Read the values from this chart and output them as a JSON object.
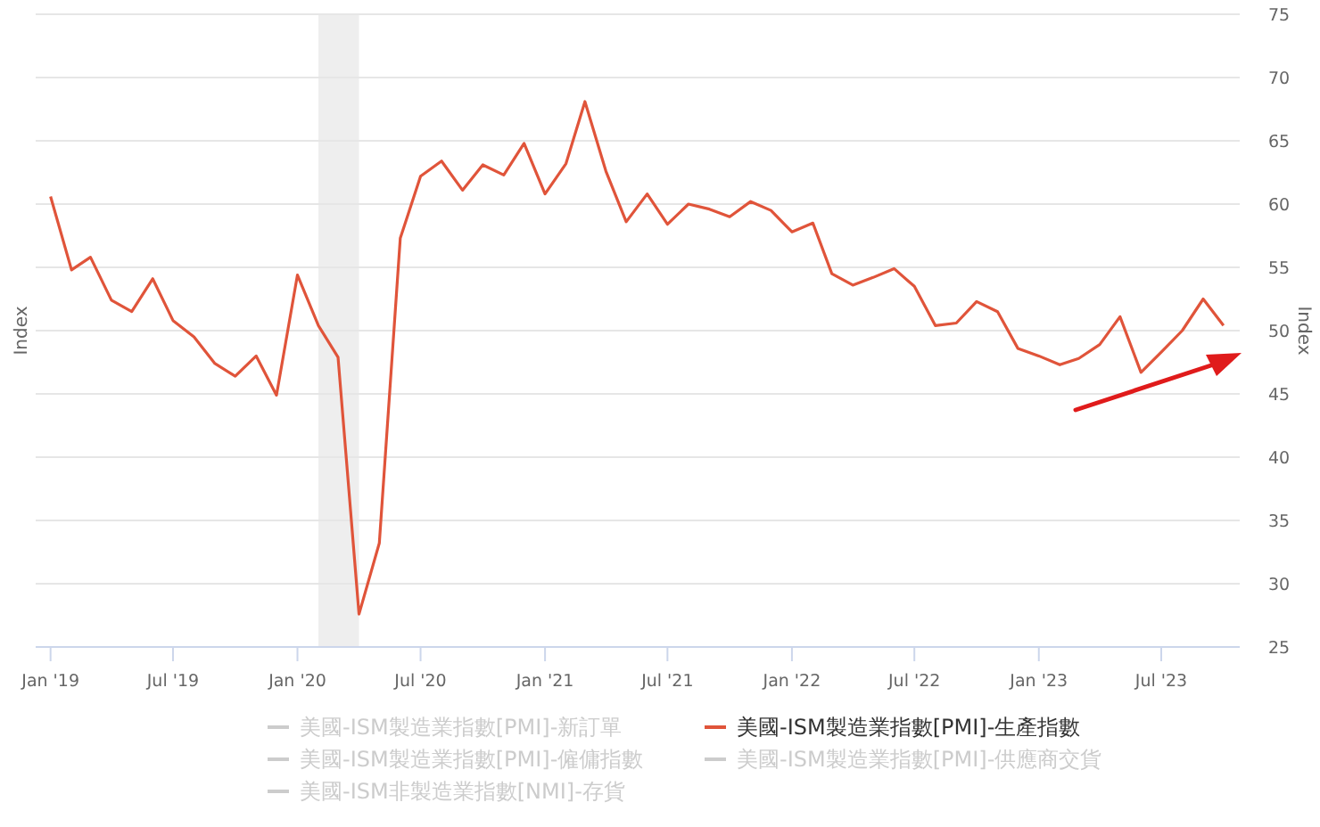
{
  "chart_data": {
    "type": "line",
    "ylabel": "Index",
    "y2label": "Index",
    "x": [
      "2019-01",
      "2019-02",
      "2019-03",
      "2019-04",
      "2019-05",
      "2019-06",
      "2019-07",
      "2019-08",
      "2019-09",
      "2019-10",
      "2019-11",
      "2019-12",
      "2020-01",
      "2020-02",
      "2020-03",
      "2020-04",
      "2020-05",
      "2020-06",
      "2020-07",
      "2020-08",
      "2020-09",
      "2020-10",
      "2020-11",
      "2020-12",
      "2021-01",
      "2021-02",
      "2021-03",
      "2021-04",
      "2021-05",
      "2021-06",
      "2021-07",
      "2021-08",
      "2021-09",
      "2021-10",
      "2021-11",
      "2021-12",
      "2022-01",
      "2022-02",
      "2022-03",
      "2022-04",
      "2022-05",
      "2022-06",
      "2022-07",
      "2022-08",
      "2022-09",
      "2022-10",
      "2022-11",
      "2022-12",
      "2023-01",
      "2023-02",
      "2023-03",
      "2023-04",
      "2023-05",
      "2023-06",
      "2023-07",
      "2023-08",
      "2023-09",
      "2023-10"
    ],
    "series": [
      {
        "name": "美國-ISM製造業指數[PMI]-新訂單",
        "color": "#cccccc",
        "values": [
          null,
          null,
          null,
          null,
          null,
          null,
          null,
          null,
          null,
          null,
          null,
          null,
          null,
          null,
          null,
          null,
          null,
          null,
          null,
          null,
          null,
          null,
          null,
          null,
          null,
          null,
          null,
          null,
          null,
          null,
          null,
          null,
          null,
          null,
          null,
          null,
          null,
          null,
          null,
          null,
          null,
          null,
          null,
          null,
          null,
          null,
          null,
          null,
          null,
          null,
          null,
          null,
          null,
          null,
          null,
          null,
          null,
          null
        ]
      },
      {
        "name": "美國-ISM製造業指數[PMI]-生產指數",
        "color": "#e0543a",
        "values": [
          60.6,
          54.8,
          55.8,
          52.4,
          51.5,
          54.1,
          50.8,
          49.5,
          47.4,
          46.4,
          48.0,
          44.9,
          54.4,
          50.4,
          47.9,
          27.6,
          33.2,
          57.3,
          62.2,
          63.4,
          61.1,
          63.1,
          62.3,
          64.8,
          60.8,
          63.2,
          68.1,
          62.6,
          58.6,
          60.8,
          58.4,
          60.0,
          59.6,
          59.0,
          60.2,
          59.5,
          57.8,
          58.5,
          54.5,
          53.6,
          54.2,
          54.9,
          53.5,
          50.4,
          50.6,
          52.3,
          51.5,
          48.6,
          48.0,
          47.3,
          47.8,
          48.9,
          51.1,
          46.7,
          48.3,
          50.0,
          52.5,
          50.4
        ]
      },
      {
        "name": "美國-ISM製造業指數[PMI]-僱傭指數",
        "color": "#cccccc",
        "values": [
          null,
          null,
          null,
          null,
          null,
          null,
          null,
          null,
          null,
          null,
          null,
          null,
          null,
          null,
          null,
          null,
          null,
          null,
          null,
          null,
          null,
          null,
          null,
          null,
          null,
          null,
          null,
          null,
          null,
          null,
          null,
          null,
          null,
          null,
          null,
          null,
          null,
          null,
          null,
          null,
          null,
          null,
          null,
          null,
          null,
          null,
          null,
          null,
          null,
          null,
          null,
          null,
          null,
          null,
          null,
          null,
          null,
          null
        ]
      },
      {
        "name": "美國-ISM製造業指數[PMI]-供應商交貨",
        "color": "#cccccc",
        "values": [
          null,
          null,
          null,
          null,
          null,
          null,
          null,
          null,
          null,
          null,
          null,
          null,
          null,
          null,
          null,
          null,
          null,
          null,
          null,
          null,
          null,
          null,
          null,
          null,
          null,
          null,
          null,
          null,
          null,
          null,
          null,
          null,
          null,
          null,
          null,
          null,
          null,
          null,
          null,
          null,
          null,
          null,
          null,
          null,
          null,
          null,
          null,
          null,
          null,
          null,
          null,
          null,
          null,
          null,
          null,
          null,
          null,
          null
        ]
      },
      {
        "name": "美國-ISM非製造業指數[NMI]-存貨",
        "color": "#cccccc",
        "values": [
          null,
          null,
          null,
          null,
          null,
          null,
          null,
          null,
          null,
          null,
          null,
          null,
          null,
          null,
          null,
          null,
          null,
          null,
          null,
          null,
          null,
          null,
          null,
          null,
          null,
          null,
          null,
          null,
          null,
          null,
          null,
          null,
          null,
          null,
          null,
          null,
          null,
          null,
          null,
          null,
          null,
          null,
          null,
          null,
          null,
          null,
          null,
          null,
          null,
          null,
          null,
          null,
          null,
          null,
          null,
          null,
          null,
          null
        ]
      }
    ],
    "xlim": [
      "2018-12-10",
      "2023-10-25"
    ],
    "xticks": [
      {
        "value": "2019-01",
        "label": "Jan '19"
      },
      {
        "value": "2019-07",
        "label": "Jul '19"
      },
      {
        "value": "2020-01",
        "label": "Jan '20"
      },
      {
        "value": "2020-07",
        "label": "Jul '20"
      },
      {
        "value": "2021-01",
        "label": "Jan '21"
      },
      {
        "value": "2021-07",
        "label": "Jul '21"
      },
      {
        "value": "2022-01",
        "label": "Jan '22"
      },
      {
        "value": "2022-07",
        "label": "Jul '22"
      },
      {
        "value": "2023-01",
        "label": "Jan '23"
      },
      {
        "value": "2023-07",
        "label": "Jul '23"
      }
    ],
    "ylim": [
      25,
      75
    ],
    "yticks": [
      25,
      30,
      35,
      40,
      45,
      50,
      55,
      60,
      65,
      70,
      75
    ],
    "bands": [
      {
        "axis": "x",
        "from": "2020-02",
        "to": "2020-04",
        "color": "#eeeeee"
      }
    ],
    "grid": "y",
    "legend": "bottom",
    "marker": "none",
    "line_style": "solid"
  }
}
